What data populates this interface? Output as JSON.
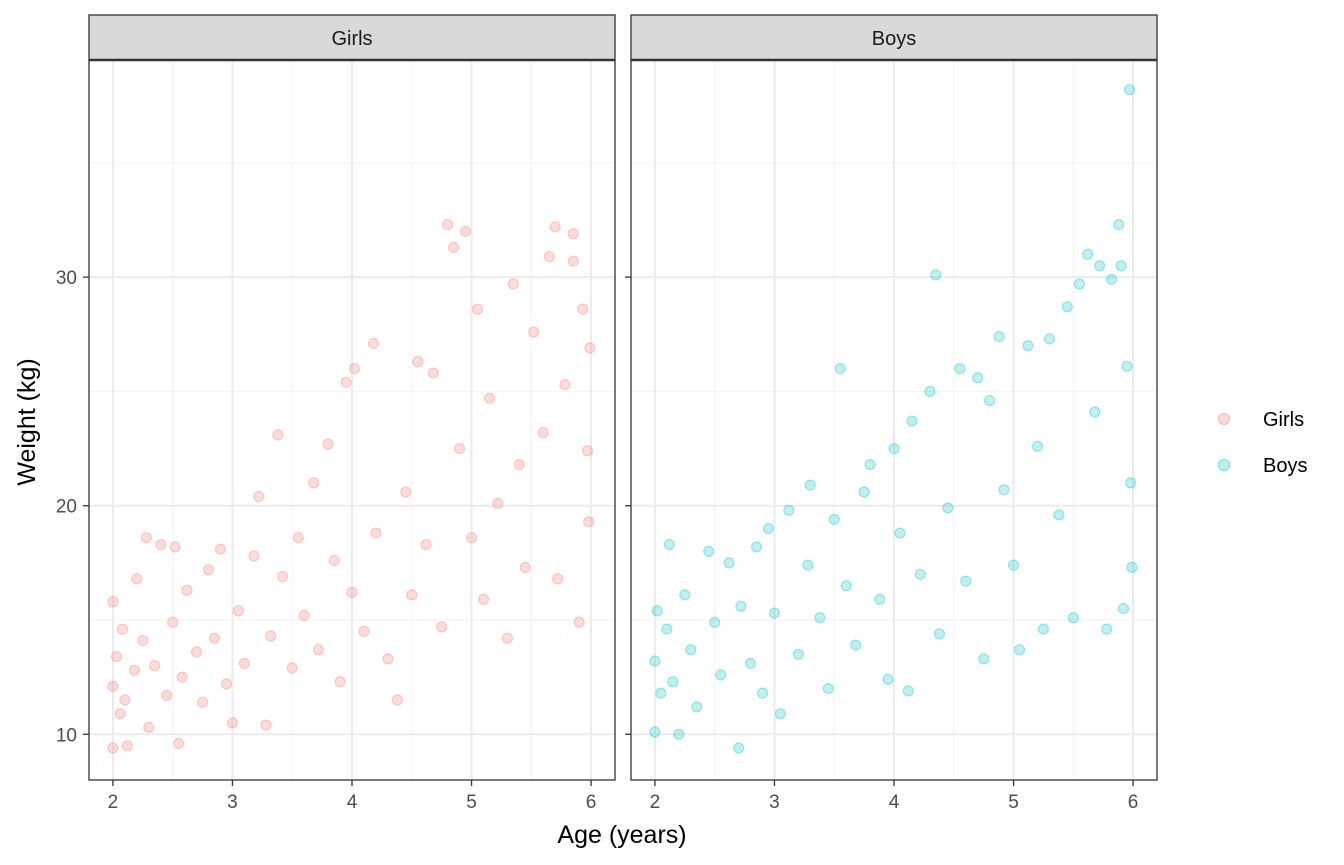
{
  "chart_data": {
    "type": "scatter",
    "xlabel": "Age (years)",
    "ylabel": "Weight (kg)",
    "xlim": [
      1.8,
      6.2
    ],
    "ylim": [
      8,
      39.5
    ],
    "x_ticks": [
      "2",
      "3",
      "4",
      "5",
      "6"
    ],
    "y_ticks": [
      "10",
      "20",
      "30"
    ],
    "grid": true,
    "legend_position": "right",
    "facets": [
      "Girls",
      "Boys"
    ],
    "point_opacity": 0.25,
    "series": [
      {
        "name": "Girls",
        "color": "#F8766D",
        "points": [
          [
            2.0,
            9.4
          ],
          [
            2.0,
            12.1
          ],
          [
            2.0,
            15.8
          ],
          [
            2.03,
            13.4
          ],
          [
            2.06,
            10.9
          ],
          [
            2.08,
            14.6
          ],
          [
            2.1,
            11.5
          ],
          [
            2.12,
            9.5
          ],
          [
            2.18,
            12.8
          ],
          [
            2.2,
            16.8
          ],
          [
            2.25,
            14.1
          ],
          [
            2.3,
            10.3
          ],
          [
            2.28,
            18.6
          ],
          [
            2.35,
            13.0
          ],
          [
            2.4,
            18.3
          ],
          [
            2.45,
            11.7
          ],
          [
            2.5,
            14.9
          ],
          [
            2.52,
            18.2
          ],
          [
            2.55,
            9.6
          ],
          [
            2.58,
            12.5
          ],
          [
            2.62,
            16.3
          ],
          [
            2.7,
            13.6
          ],
          [
            2.75,
            11.4
          ],
          [
            2.8,
            17.2
          ],
          [
            2.85,
            14.2
          ],
          [
            2.9,
            18.1
          ],
          [
            2.95,
            12.2
          ],
          [
            3.0,
            10.5
          ],
          [
            3.05,
            15.4
          ],
          [
            3.1,
            13.1
          ],
          [
            3.18,
            17.8
          ],
          [
            3.22,
            20.4
          ],
          [
            3.28,
            10.4
          ],
          [
            3.32,
            14.3
          ],
          [
            3.38,
            23.1
          ],
          [
            3.42,
            16.9
          ],
          [
            3.5,
            12.9
          ],
          [
            3.55,
            18.6
          ],
          [
            3.6,
            15.2
          ],
          [
            3.68,
            21.0
          ],
          [
            3.72,
            13.7
          ],
          [
            3.8,
            22.7
          ],
          [
            3.85,
            17.6
          ],
          [
            3.9,
            12.3
          ],
          [
            3.95,
            25.4
          ],
          [
            4.0,
            16.2
          ],
          [
            4.02,
            26.0
          ],
          [
            4.1,
            14.5
          ],
          [
            4.18,
            27.1
          ],
          [
            4.2,
            18.8
          ],
          [
            4.3,
            13.3
          ],
          [
            4.38,
            11.5
          ],
          [
            4.45,
            20.6
          ],
          [
            4.5,
            16.1
          ],
          [
            4.55,
            26.3
          ],
          [
            4.62,
            18.3
          ],
          [
            4.68,
            25.8
          ],
          [
            4.75,
            14.7
          ],
          [
            4.8,
            32.3
          ],
          [
            4.85,
            31.3
          ],
          [
            4.9,
            22.5
          ],
          [
            4.95,
            32.0
          ],
          [
            5.0,
            18.6
          ],
          [
            5.05,
            28.6
          ],
          [
            5.1,
            15.9
          ],
          [
            5.15,
            24.7
          ],
          [
            5.22,
            20.1
          ],
          [
            5.3,
            14.2
          ],
          [
            5.35,
            29.7
          ],
          [
            5.4,
            21.8
          ],
          [
            5.45,
            17.3
          ],
          [
            5.52,
            27.6
          ],
          [
            5.6,
            23.2
          ],
          [
            5.65,
            30.9
          ],
          [
            5.7,
            32.2
          ],
          [
            5.72,
            16.8
          ],
          [
            5.78,
            25.3
          ],
          [
            5.85,
            31.9
          ],
          [
            5.85,
            30.7
          ],
          [
            5.9,
            14.9
          ],
          [
            5.93,
            28.6
          ],
          [
            5.97,
            22.4
          ],
          [
            5.98,
            19.3
          ],
          [
            5.99,
            26.9
          ]
        ]
      },
      {
        "name": "Boys",
        "color": "#00BFC4",
        "points": [
          [
            2.0,
            10.1
          ],
          [
            2.0,
            13.2
          ],
          [
            2.02,
            15.4
          ],
          [
            2.05,
            11.8
          ],
          [
            2.1,
            14.6
          ],
          [
            2.12,
            18.3
          ],
          [
            2.15,
            12.3
          ],
          [
            2.2,
            10.0
          ],
          [
            2.25,
            16.1
          ],
          [
            2.3,
            13.7
          ],
          [
            2.35,
            11.2
          ],
          [
            2.45,
            18.0
          ],
          [
            2.5,
            14.9
          ],
          [
            2.55,
            12.6
          ],
          [
            2.62,
            17.5
          ],
          [
            2.7,
            9.4
          ],
          [
            2.72,
            15.6
          ],
          [
            2.8,
            13.1
          ],
          [
            2.85,
            18.2
          ],
          [
            2.9,
            11.8
          ],
          [
            2.95,
            19.0
          ],
          [
            3.0,
            15.3
          ],
          [
            3.05,
            10.9
          ],
          [
            3.12,
            19.8
          ],
          [
            3.2,
            13.5
          ],
          [
            3.28,
            17.4
          ],
          [
            3.3,
            20.9
          ],
          [
            3.38,
            15.1
          ],
          [
            3.45,
            12.0
          ],
          [
            3.5,
            19.4
          ],
          [
            3.55,
            26.0
          ],
          [
            3.6,
            16.5
          ],
          [
            3.68,
            13.9
          ],
          [
            3.75,
            20.6
          ],
          [
            3.8,
            21.8
          ],
          [
            3.88,
            15.9
          ],
          [
            3.95,
            12.4
          ],
          [
            4.0,
            22.5
          ],
          [
            4.05,
            18.8
          ],
          [
            4.12,
            11.9
          ],
          [
            4.15,
            23.7
          ],
          [
            4.22,
            17.0
          ],
          [
            4.3,
            25.0
          ],
          [
            4.35,
            30.1
          ],
          [
            4.38,
            14.4
          ],
          [
            4.45,
            19.9
          ],
          [
            4.55,
            26.0
          ],
          [
            4.6,
            16.7
          ],
          [
            4.7,
            25.6
          ],
          [
            4.75,
            13.3
          ],
          [
            4.8,
            24.6
          ],
          [
            4.88,
            27.4
          ],
          [
            4.92,
            20.7
          ],
          [
            5.0,
            17.4
          ],
          [
            5.05,
            13.7
          ],
          [
            5.12,
            27.0
          ],
          [
            5.2,
            22.6
          ],
          [
            5.25,
            14.6
          ],
          [
            5.3,
            27.3
          ],
          [
            5.38,
            19.6
          ],
          [
            5.45,
            28.7
          ],
          [
            5.5,
            15.1
          ],
          [
            5.55,
            29.7
          ],
          [
            5.62,
            31.0
          ],
          [
            5.68,
            24.1
          ],
          [
            5.72,
            30.5
          ],
          [
            5.78,
            14.6
          ],
          [
            5.82,
            29.9
          ],
          [
            5.88,
            32.3
          ],
          [
            5.9,
            30.5
          ],
          [
            5.92,
            15.5
          ],
          [
            5.95,
            26.1
          ],
          [
            5.97,
            38.2
          ],
          [
            5.98,
            21.0
          ],
          [
            5.99,
            17.3
          ]
        ]
      }
    ]
  }
}
